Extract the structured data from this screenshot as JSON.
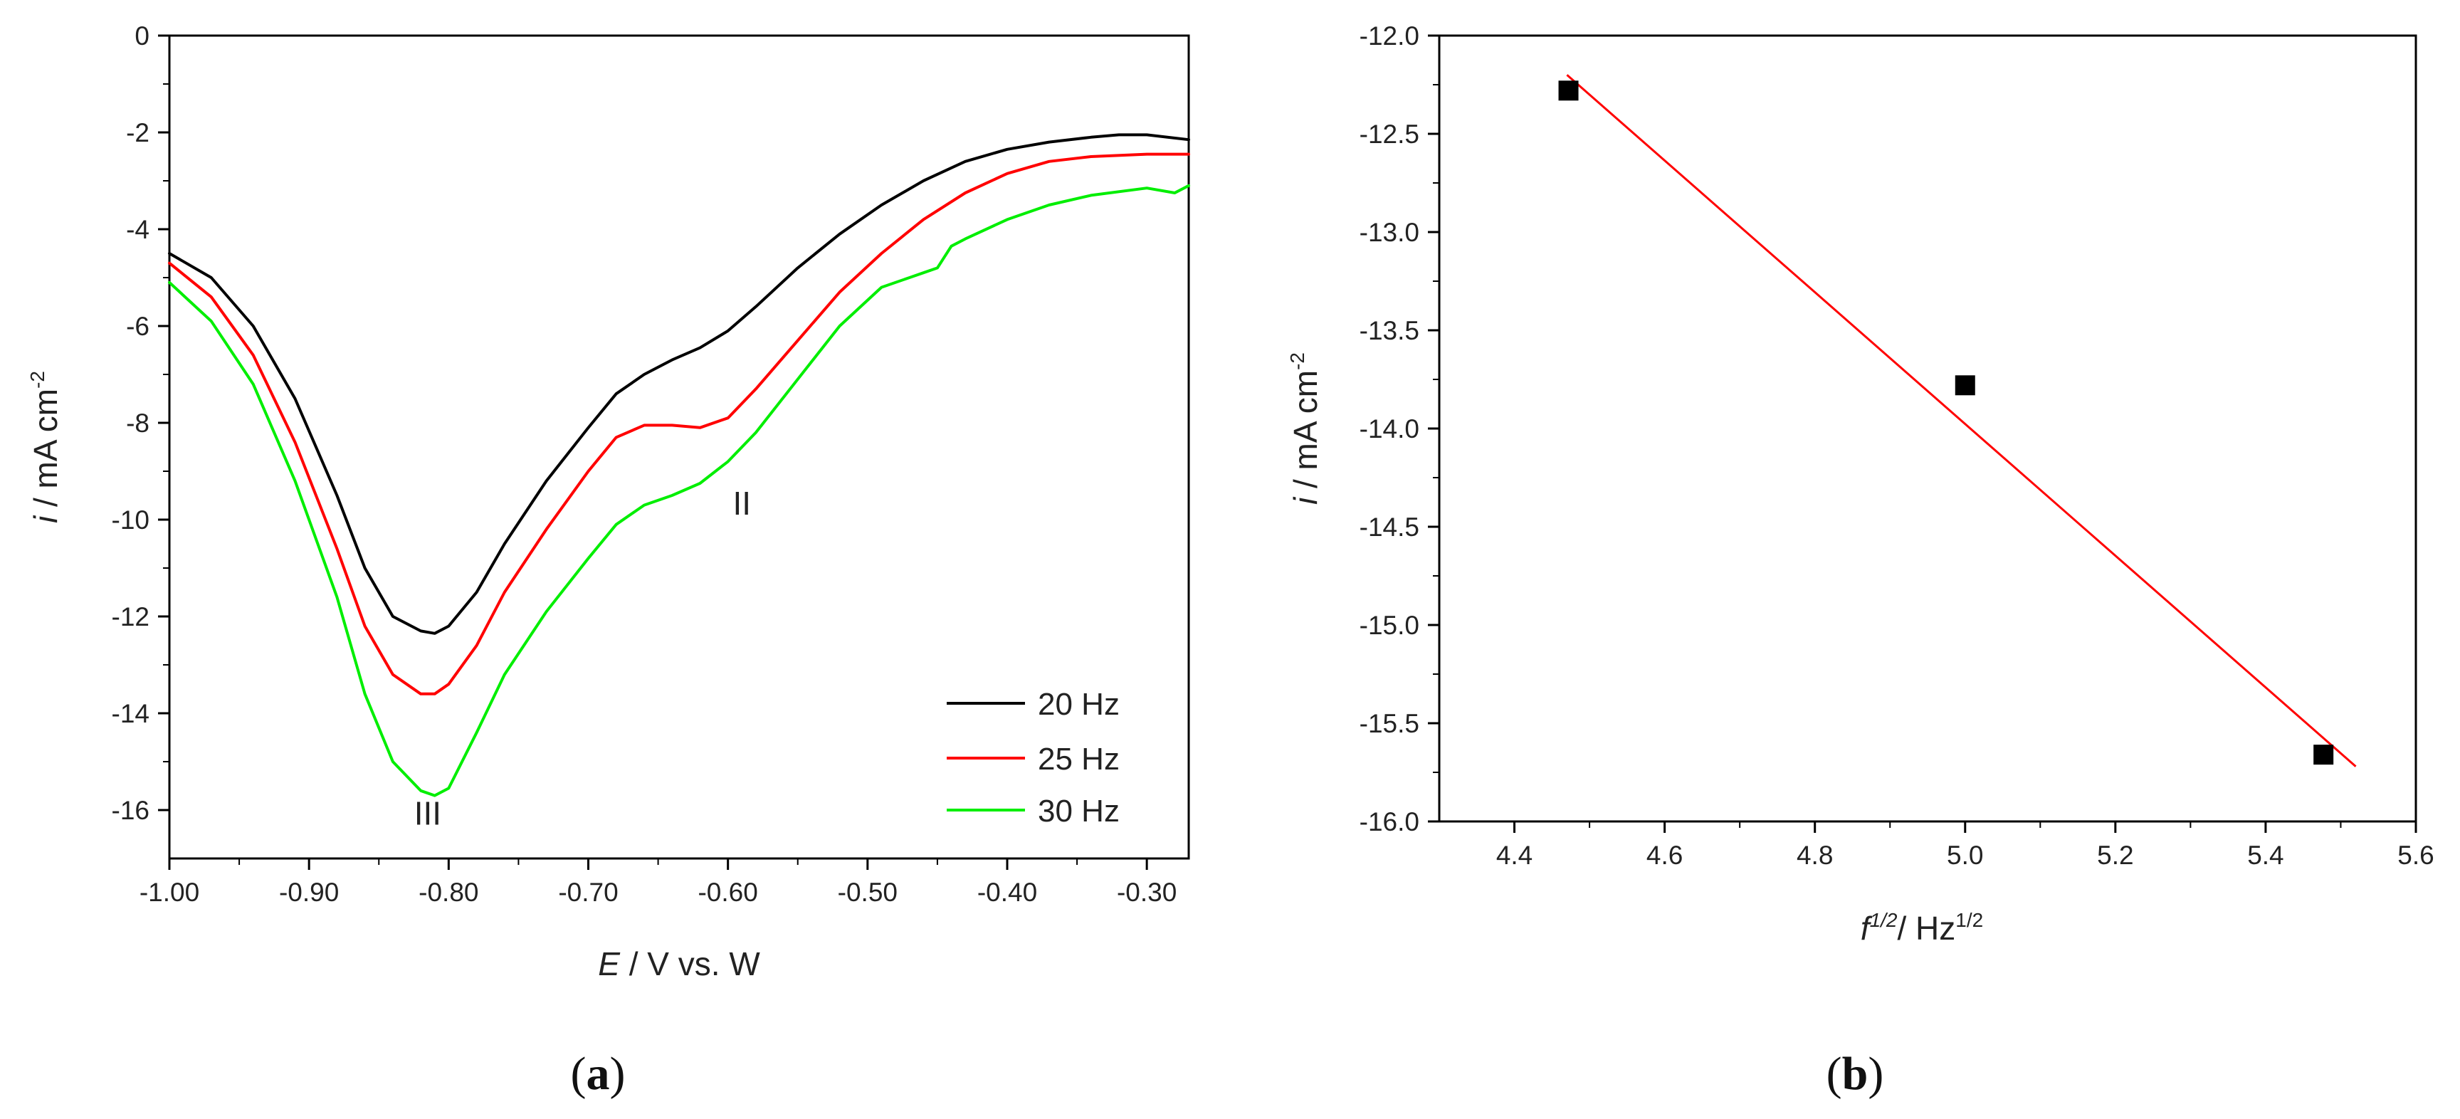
{
  "chart_data": [
    {
      "type": "line",
      "panel_label": "a",
      "xlabel_var": "E",
      "xlabel_rest": " / V vs. W",
      "ylabel_var": "i",
      "ylabel_rest": " / mA cm",
      "ylabel_sup": "-2",
      "xlim": [
        -1.0,
        -0.27
      ],
      "ylim": [
        -17,
        0
      ],
      "x_ticks": [
        -1.0,
        -0.9,
        -0.8,
        -0.7,
        -0.6,
        -0.5,
        -0.4,
        -0.3
      ],
      "x_tick_labels": [
        "-1.00",
        "-0.90",
        "-0.80",
        "-0.70",
        "-0.60",
        "-0.50",
        "-0.40",
        "-0.30"
      ],
      "y_ticks": [
        0,
        -2,
        -4,
        -6,
        -8,
        -10,
        -12,
        -14,
        -16
      ],
      "y_tick_labels": [
        "0",
        "-2",
        "-4",
        "-6",
        "-8",
        "-10",
        "-12",
        "-14",
        "-16"
      ],
      "legend_position": "bottom-right",
      "annotations": [
        {
          "text": "II",
          "x": -0.59,
          "y": -9.9
        },
        {
          "text": "III",
          "x": -0.815,
          "y": -16.3
        }
      ],
      "series": [
        {
          "name": "20 Hz",
          "color": "#000000",
          "x": [
            -1.0,
            -0.97,
            -0.94,
            -0.91,
            -0.88,
            -0.86,
            -0.84,
            -0.82,
            -0.81,
            -0.8,
            -0.78,
            -0.76,
            -0.73,
            -0.7,
            -0.68,
            -0.66,
            -0.64,
            -0.62,
            -0.6,
            -0.58,
            -0.55,
            -0.52,
            -0.49,
            -0.46,
            -0.43,
            -0.4,
            -0.37,
            -0.34,
            -0.32,
            -0.3,
            -0.27
          ],
          "y": [
            -4.5,
            -5.0,
            -6.0,
            -7.5,
            -9.5,
            -11.0,
            -12.0,
            -12.3,
            -12.35,
            -12.2,
            -11.5,
            -10.5,
            -9.2,
            -8.1,
            -7.4,
            -7.0,
            -6.7,
            -6.45,
            -6.1,
            -5.6,
            -4.8,
            -4.1,
            -3.5,
            -3.0,
            -2.6,
            -2.35,
            -2.2,
            -2.1,
            -2.05,
            -2.05,
            -2.15
          ]
        },
        {
          "name": "25 Hz",
          "color": "#ff0000",
          "x": [
            -1.0,
            -0.97,
            -0.94,
            -0.91,
            -0.88,
            -0.86,
            -0.84,
            -0.82,
            -0.81,
            -0.8,
            -0.78,
            -0.76,
            -0.73,
            -0.7,
            -0.68,
            -0.66,
            -0.64,
            -0.62,
            -0.6,
            -0.58,
            -0.55,
            -0.52,
            -0.49,
            -0.46,
            -0.43,
            -0.4,
            -0.37,
            -0.34,
            -0.3,
            -0.27
          ],
          "y": [
            -4.7,
            -5.4,
            -6.6,
            -8.4,
            -10.6,
            -12.2,
            -13.2,
            -13.6,
            -13.6,
            -13.4,
            -12.6,
            -11.5,
            -10.2,
            -9.0,
            -8.3,
            -8.05,
            -8.05,
            -8.1,
            -7.9,
            -7.3,
            -6.3,
            -5.3,
            -4.5,
            -3.8,
            -3.25,
            -2.85,
            -2.6,
            -2.5,
            -2.45,
            -2.45
          ]
        },
        {
          "name": "30 Hz",
          "color": "#00ee00",
          "x": [
            -1.0,
            -0.97,
            -0.94,
            -0.91,
            -0.88,
            -0.86,
            -0.84,
            -0.82,
            -0.81,
            -0.8,
            -0.78,
            -0.76,
            -0.73,
            -0.7,
            -0.68,
            -0.66,
            -0.64,
            -0.62,
            -0.6,
            -0.58,
            -0.55,
            -0.52,
            -0.49,
            -0.47,
            -0.46,
            -0.45,
            -0.44,
            -0.43,
            -0.4,
            -0.37,
            -0.34,
            -0.3,
            -0.28,
            -0.27
          ],
          "y": [
            -5.1,
            -5.9,
            -7.2,
            -9.2,
            -11.6,
            -13.6,
            -15.0,
            -15.6,
            -15.7,
            -15.55,
            -14.4,
            -13.2,
            -11.9,
            -10.8,
            -10.1,
            -9.7,
            -9.5,
            -9.25,
            -8.8,
            -8.2,
            -7.1,
            -6.0,
            -5.2,
            -5.0,
            -4.9,
            -4.8,
            -4.35,
            -4.2,
            -3.8,
            -3.5,
            -3.3,
            -3.15,
            -3.25,
            -3.1
          ]
        }
      ]
    },
    {
      "type": "scatter",
      "panel_label": "b",
      "xlabel_var": "f",
      "xlabel_var_sup": "1/2",
      "xlabel_rest": "/ Hz",
      "xlabel_sup": "1/2",
      "ylabel_var": "i",
      "ylabel_rest": " / mA cm",
      "ylabel_sup": "-2",
      "xlim": [
        4.3,
        5.6
      ],
      "ylim": [
        -16.0,
        -12.0
      ],
      "x_ticks": [
        4.4,
        4.6,
        4.8,
        5.0,
        5.2,
        5.4,
        5.6
      ],
      "x_tick_labels": [
        "4.4",
        "4.6",
        "4.8",
        "5.0",
        "5.2",
        "5.4",
        "5.6"
      ],
      "y_ticks": [
        -12.0,
        -12.5,
        -13.0,
        -13.5,
        -14.0,
        -14.5,
        -15.0,
        -15.5,
        -16.0
      ],
      "y_tick_labels": [
        "-12.0",
        "-12.5",
        "-13.0",
        "-13.5",
        "-14.0",
        "-14.5",
        "-15.0",
        "-15.5",
        "-16.0"
      ],
      "points": {
        "x": [
          4.472,
          5.0,
          5.477
        ],
        "y": [
          -12.28,
          -13.78,
          -15.66
        ],
        "color": "#000000",
        "marker": "square"
      },
      "fit_line": {
        "x": [
          4.47,
          5.52
        ],
        "y": [
          -12.2,
          -15.72
        ],
        "color": "#ff0000"
      }
    }
  ]
}
